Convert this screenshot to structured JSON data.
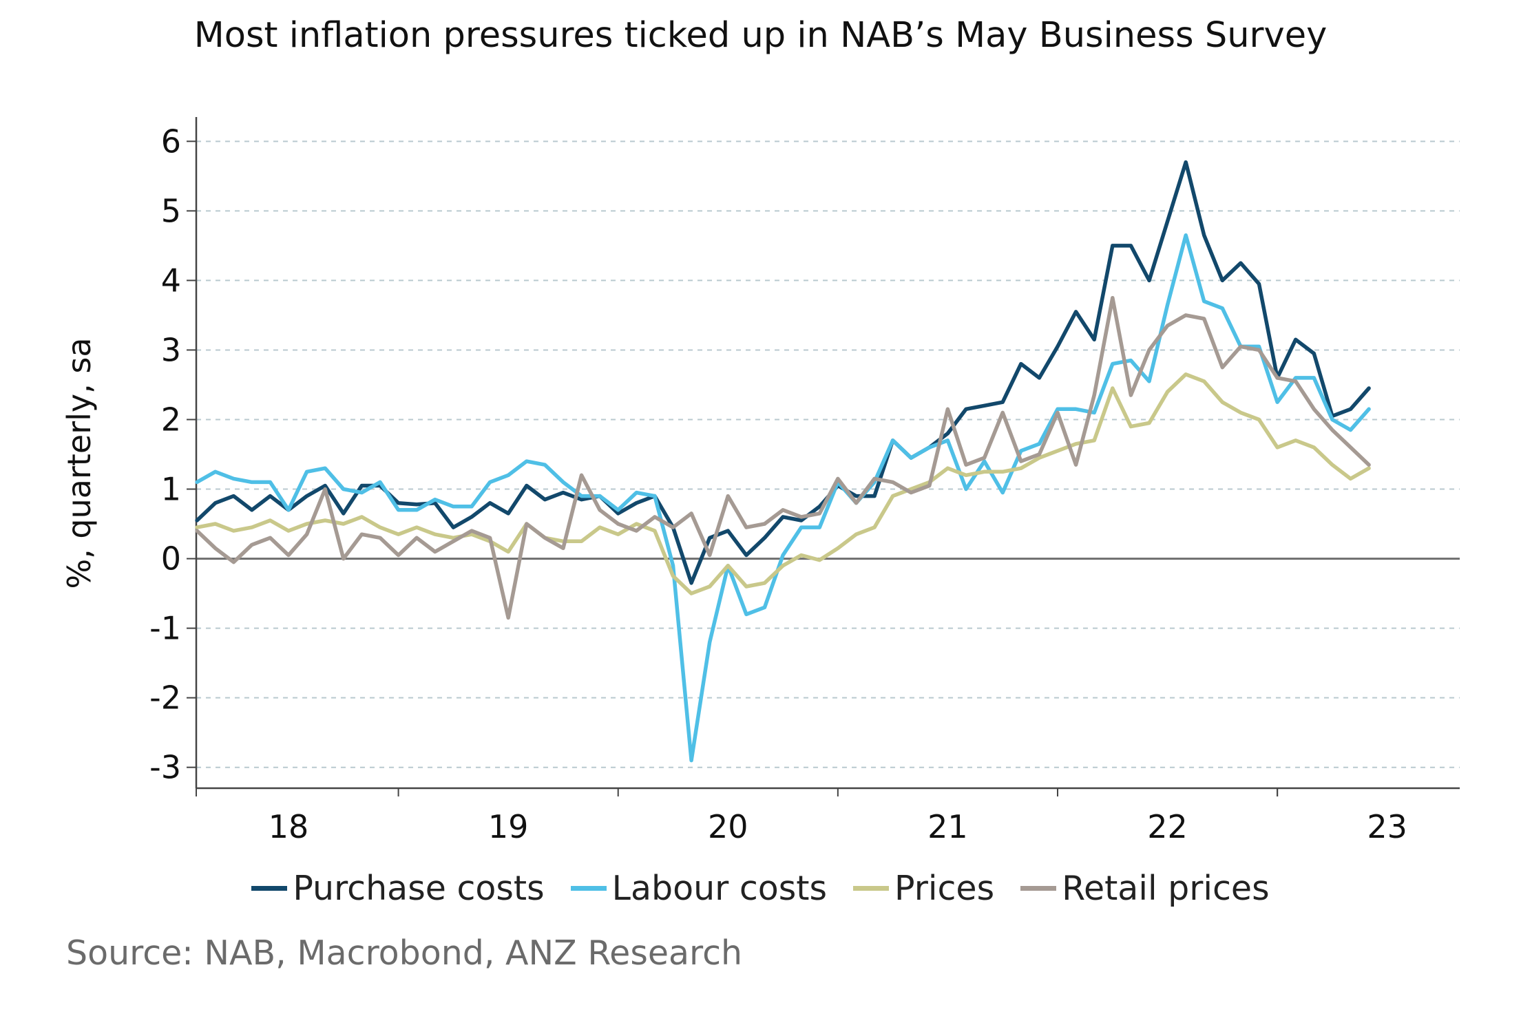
{
  "chart_data": {
    "type": "line",
    "title": "Most inflation pressures ticked up in NAB’s May Business Survey",
    "xlabel": "",
    "ylabel": "%, quarterly, sa",
    "ylim": [
      -3.3,
      6.3
    ],
    "yticks": [
      6,
      5,
      4,
      3,
      2,
      1,
      0,
      -1,
      -2,
      -3
    ],
    "ytick_labels": [
      "6",
      "5",
      "4",
      "3",
      "2",
      "1",
      "0",
      "-1",
      "-2",
      "-3"
    ],
    "xrange": [
      2017.58,
      2023.33
    ],
    "xtick_positions": [
      2018,
      2019,
      2020,
      2021,
      2022,
      2023
    ],
    "xtick_labels": [
      "18",
      "19",
      "20",
      "21",
      "22",
      "23"
    ],
    "grid": "horizontal dashed",
    "legend_placement": "bottom",
    "x_start": "2017-08",
    "x_step": "1 month",
    "series": [
      {
        "name": "Purchase costs",
        "color": "#12486b",
        "values": [
          0.55,
          0.8,
          0.9,
          0.7,
          0.9,
          0.7,
          0.9,
          1.05,
          0.65,
          1.05,
          1.05,
          0.8,
          0.78,
          0.8,
          0.45,
          0.6,
          0.8,
          0.65,
          1.05,
          0.85,
          0.95,
          0.85,
          0.9,
          0.65,
          0.8,
          0.9,
          0.45,
          -0.35,
          0.3,
          0.4,
          0.05,
          0.3,
          0.6,
          0.55,
          0.75,
          1.05,
          0.9,
          0.9,
          1.7,
          1.45,
          1.6,
          1.8,
          2.15,
          2.2,
          2.25,
          2.8,
          2.6,
          3.05,
          3.55,
          3.15,
          4.5,
          4.5,
          4.0,
          4.85,
          5.7,
          4.65,
          4.0,
          4.25,
          3.95,
          2.6,
          3.15,
          2.95,
          2.05,
          2.15,
          2.45
        ]
      },
      {
        "name": "Labour costs",
        "color": "#4fbfe6",
        "values": [
          1.1,
          1.25,
          1.15,
          1.1,
          1.1,
          0.7,
          1.25,
          1.3,
          1.0,
          0.95,
          1.1,
          0.7,
          0.7,
          0.85,
          0.75,
          0.75,
          1.1,
          1.2,
          1.4,
          1.35,
          1.1,
          0.9,
          0.9,
          0.7,
          0.95,
          0.9,
          -0.1,
          -2.9,
          -1.2,
          -0.1,
          -0.8,
          -0.7,
          0.05,
          0.45,
          0.45,
          1.1,
          0.8,
          1.1,
          1.7,
          1.45,
          1.6,
          1.7,
          1.0,
          1.4,
          0.95,
          1.55,
          1.65,
          2.15,
          2.15,
          2.1,
          2.8,
          2.85,
          2.55,
          3.65,
          4.65,
          3.7,
          3.6,
          3.05,
          3.05,
          2.25,
          2.6,
          2.6,
          2.0,
          1.85,
          2.15
        ]
      },
      {
        "name": "Prices",
        "color": "#c9c88a",
        "values": [
          0.45,
          0.5,
          0.4,
          0.45,
          0.55,
          0.4,
          0.5,
          0.55,
          0.5,
          0.6,
          0.45,
          0.35,
          0.45,
          0.35,
          0.3,
          0.35,
          0.25,
          0.1,
          0.5,
          0.3,
          0.25,
          0.25,
          0.45,
          0.35,
          0.5,
          0.4,
          -0.25,
          -0.5,
          -0.4,
          -0.1,
          -0.4,
          -0.35,
          -0.1,
          0.05,
          -0.02,
          0.15,
          0.35,
          0.45,
          0.9,
          1.0,
          1.1,
          1.3,
          1.2,
          1.25,
          1.25,
          1.3,
          1.45,
          1.55,
          1.65,
          1.7,
          2.45,
          1.9,
          1.95,
          2.4,
          2.65,
          2.55,
          2.25,
          2.1,
          2.0,
          1.6,
          1.7,
          1.6,
          1.35,
          1.15,
          1.3
        ]
      },
      {
        "name": "Retail prices",
        "color": "#a59a93",
        "values": [
          0.4,
          0.15,
          -0.05,
          0.2,
          0.3,
          0.05,
          0.35,
          1.0,
          0.0,
          0.35,
          0.3,
          0.05,
          0.3,
          0.1,
          0.25,
          0.4,
          0.3,
          -0.85,
          0.5,
          0.3,
          0.15,
          1.2,
          0.7,
          0.5,
          0.4,
          0.6,
          0.45,
          0.65,
          0.05,
          0.9,
          0.45,
          0.5,
          0.7,
          0.6,
          0.65,
          1.15,
          0.8,
          1.15,
          1.1,
          0.95,
          1.05,
          2.15,
          1.35,
          1.45,
          2.1,
          1.4,
          1.5,
          2.1,
          1.35,
          2.35,
          3.75,
          2.35,
          3.0,
          3.35,
          3.5,
          3.45,
          2.75,
          3.05,
          3.0,
          2.6,
          2.55,
          2.15,
          1.85,
          1.6,
          1.35
        ]
      }
    ]
  },
  "legend": {
    "items": [
      {
        "label": "Purchase costs",
        "color": "#12486b"
      },
      {
        "label": "Labour costs",
        "color": "#4fbfe6"
      },
      {
        "label": "Prices",
        "color": "#c9c88a"
      },
      {
        "label": "Retail prices",
        "color": "#a59a93"
      }
    ]
  },
  "source": "Source: NAB, Macrobond, ANZ Research"
}
